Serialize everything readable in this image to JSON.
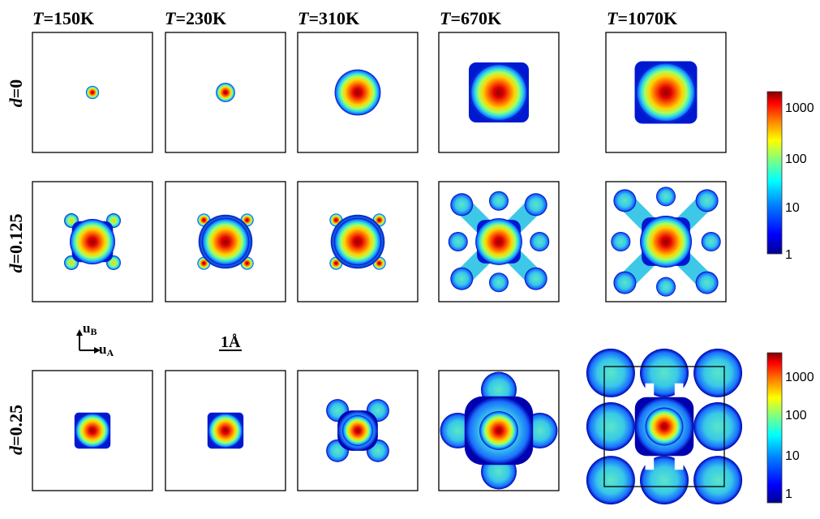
{
  "columns": [
    {
      "var": "T",
      "value": "=150K"
    },
    {
      "var": "T",
      "value": "=230K"
    },
    {
      "var": "T",
      "value": "=310K"
    },
    {
      "var": "T",
      "value": "=670K"
    },
    {
      "var": "T",
      "value": "=1070K"
    }
  ],
  "rows": [
    {
      "var": "d",
      "value": "=0"
    },
    {
      "var": "d",
      "value": "=0.125"
    },
    {
      "var": "d",
      "value": "=0.25"
    }
  ],
  "axes": {
    "u_b": "u",
    "u_b_sub": "B",
    "u_a": "u",
    "u_a_sub": "A"
  },
  "scalebar_label": "1Å",
  "colorbar_ticks": [
    "1000",
    "100",
    "10",
    "1"
  ],
  "colormap": [
    "#00008f",
    "#0000ff",
    "#0080ff",
    "#00ffff",
    "#80ff80",
    "#ffff00",
    "#ff8000",
    "#ff0000",
    "#800000"
  ],
  "panels": [
    [
      {
        "shape": "round",
        "extent": 0.11,
        "core": 0.07,
        "boxed": true
      },
      {
        "shape": "round",
        "extent": 0.16,
        "core": 0.09,
        "boxed": true
      },
      {
        "shape": "cross",
        "extent": 0.28,
        "core": 0.12,
        "boxed": true
      },
      {
        "shape": "square",
        "extent": 0.5,
        "core": 0.22,
        "boxed": true
      },
      {
        "shape": "square",
        "extent": 0.52,
        "core": 0.24,
        "boxed": true
      }
    ],
    [
      {
        "shape": "star",
        "extent": 0.45,
        "core": 0.22,
        "boxed": true
      },
      {
        "shape": "round-satellites",
        "extent": 0.45,
        "core": 0.26,
        "boxed": true
      },
      {
        "shape": "round-satellites",
        "extent": 0.45,
        "core": 0.24,
        "boxed": true
      },
      {
        "shape": "x-arms",
        "extent": 0.65,
        "core": 0.18,
        "boxed": false
      },
      {
        "shape": "x-arms",
        "extent": 0.72,
        "core": 0.18,
        "boxed": false
      }
    ],
    [
      {
        "shape": "square",
        "extent": 0.3,
        "core": 0.12,
        "boxed": true
      },
      {
        "shape": "square",
        "extent": 0.3,
        "core": 0.12,
        "boxed": true
      },
      {
        "shape": "bulge",
        "extent": 0.4,
        "core": 0.15,
        "boxed": true
      },
      {
        "shape": "lobes",
        "extent": 0.62,
        "core": 0.14,
        "boxed": false
      },
      {
        "shape": "grid-lobes",
        "extent": 0.72,
        "core": 0.12,
        "boxed": false
      }
    ]
  ]
}
